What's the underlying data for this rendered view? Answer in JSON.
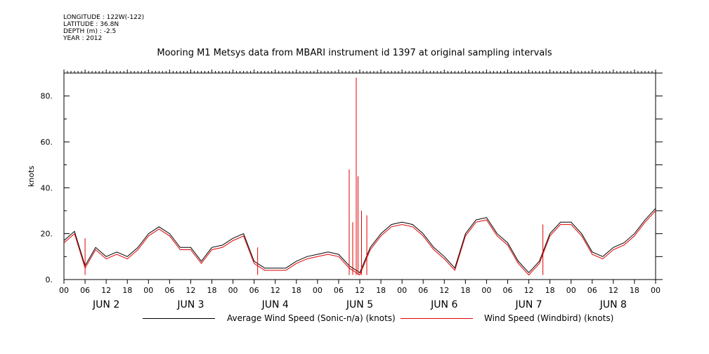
{
  "meta": {
    "longitude": "LONGITUDE : 122W(-122)",
    "latitude": "LATITUDE : 36.8N",
    "depth": "DEPTH (m) : -2.5",
    "year": "YEAR : 2012"
  },
  "colors": {
    "avg": "#000000",
    "windbird": "#e00000"
  },
  "chart_data": {
    "type": "line",
    "title": "Mooring M1 Metsys data from MBARI instrument id 1397 at original sampling intervals",
    "ylabel": "knots",
    "ylim": [
      0,
      90
    ],
    "yticks": [
      "0.",
      "20.",
      "40.",
      "60.",
      "80."
    ],
    "xlim_hours_labels": "JUN 2 00 to JUN 9 00",
    "x_hour_labels": [
      "00",
      "06",
      "12",
      "18",
      "00",
      "06",
      "12",
      "18",
      "00",
      "06",
      "12",
      "18",
      "00",
      "06",
      "12",
      "18",
      "00",
      "06",
      "12",
      "18",
      "00",
      "06",
      "12",
      "18",
      "00",
      "06",
      "12",
      "18",
      "00"
    ],
    "day_labels": [
      "JUN  2",
      "JUN  3",
      "JUN  4",
      "JUN  5",
      "JUN  6",
      "JUN  7",
      "JUN  8"
    ],
    "grid": false,
    "legend_position": "bottom",
    "series": [
      {
        "name": "Average Wind Speed (Sonic-n/a) (knots)",
        "x": [
          "Jun 2 00:00",
          "Jun 2 03:00",
          "Jun 2 06:00",
          "Jun 2 09:00",
          "Jun 2 12:00",
          "Jun 2 15:00",
          "Jun 2 18:00",
          "Jun 2 21:00",
          "Jun 3 00:00",
          "Jun 3 03:00",
          "Jun 3 06:00",
          "Jun 3 09:00",
          "Jun 3 12:00",
          "Jun 3 15:00",
          "Jun 3 18:00",
          "Jun 3 21:00",
          "Jun 4 00:00",
          "Jun 4 03:00",
          "Jun 4 06:00",
          "Jun 4 09:00",
          "Jun 4 12:00",
          "Jun 4 15:00",
          "Jun 4 18:00",
          "Jun 4 21:00",
          "Jun 5 00:00",
          "Jun 5 03:00",
          "Jun 5 06:00",
          "Jun 5 09:00",
          "Jun 5 12:00",
          "Jun 5 15:00",
          "Jun 5 18:00",
          "Jun 5 21:00",
          "Jun 6 00:00",
          "Jun 6 03:00",
          "Jun 6 06:00",
          "Jun 6 09:00",
          "Jun 6 12:00",
          "Jun 6 15:00",
          "Jun 6 18:00",
          "Jun 6 21:00",
          "Jun 7 00:00",
          "Jun 7 03:00",
          "Jun 7 06:00",
          "Jun 7 09:00",
          "Jun 7 12:00",
          "Jun 7 15:00",
          "Jun 7 18:00",
          "Jun 7 21:00",
          "Jun 8 00:00",
          "Jun 8 03:00",
          "Jun 8 06:00",
          "Jun 8 09:00",
          "Jun 8 12:00",
          "Jun 8 15:00",
          "Jun 8 18:00",
          "Jun 8 21:00",
          "Jun 9 00:00"
        ],
        "values": [
          17,
          21,
          6,
          14,
          10,
          12,
          10,
          14,
          20,
          23,
          20,
          14,
          14,
          8,
          14,
          15,
          18,
          20,
          8,
          5,
          5,
          5,
          8,
          10,
          11,
          12,
          11,
          6,
          3,
          14,
          20,
          24,
          25,
          24,
          20,
          14,
          10,
          5,
          20,
          26,
          27,
          20,
          16,
          8,
          3,
          8,
          20,
          25,
          25,
          20,
          12,
          10,
          14,
          16,
          20,
          26,
          31
        ]
      },
      {
        "name": "Wind Speed (Windbird) (knots)",
        "x": [
          "Jun 2 00:00",
          "Jun 2 03:00",
          "Jun 2 06:00",
          "Jun 2 09:00",
          "Jun 2 12:00",
          "Jun 2 15:00",
          "Jun 2 18:00",
          "Jun 2 21:00",
          "Jun 3 00:00",
          "Jun 3 03:00",
          "Jun 3 06:00",
          "Jun 3 09:00",
          "Jun 3 12:00",
          "Jun 3 15:00",
          "Jun 3 18:00",
          "Jun 3 21:00",
          "Jun 4 00:00",
          "Jun 4 03:00",
          "Jun 4 06:00",
          "Jun 4 09:00",
          "Jun 4 12:00",
          "Jun 4 15:00",
          "Jun 4 18:00",
          "Jun 4 21:00",
          "Jun 5 00:00",
          "Jun 5 03:00",
          "Jun 5 06:00",
          "Jun 5 09:00",
          "Jun 5 12:00",
          "Jun 5 15:00",
          "Jun 5 18:00",
          "Jun 5 21:00",
          "Jun 6 00:00",
          "Jun 6 03:00",
          "Jun 6 06:00",
          "Jun 6 09:00",
          "Jun 6 12:00",
          "Jun 6 15:00",
          "Jun 6 18:00",
          "Jun 6 21:00",
          "Jun 7 00:00",
          "Jun 7 03:00",
          "Jun 7 06:00",
          "Jun 7 09:00",
          "Jun 7 12:00",
          "Jun 7 15:00",
          "Jun 7 18:00",
          "Jun 7 21:00",
          "Jun 8 00:00",
          "Jun 8 03:00",
          "Jun 8 06:00",
          "Jun 8 09:00",
          "Jun 8 12:00",
          "Jun 8 15:00",
          "Jun 8 18:00",
          "Jun 8 21:00",
          "Jun 9 00:00"
        ],
        "values": [
          16,
          20,
          5,
          13,
          9,
          11,
          9,
          13,
          19,
          22,
          19,
          13,
          13,
          7,
          13,
          14,
          17,
          19,
          7,
          4,
          4,
          4,
          7,
          9,
          10,
          11,
          10,
          5,
          2,
          13,
          19,
          23,
          24,
          23,
          19,
          13,
          9,
          4,
          19,
          25,
          26,
          19,
          15,
          7,
          2,
          7,
          19,
          24,
          24,
          19,
          11,
          9,
          13,
          15,
          19,
          25,
          30
        ]
      }
    ],
    "spikes": [
      {
        "x": "Jun 5 09:00",
        "value": 48
      },
      {
        "x": "Jun 5 10:00",
        "value": 25
      },
      {
        "x": "Jun 5 11:00",
        "value": 88
      },
      {
        "x": "Jun 5 11:30",
        "value": 45
      },
      {
        "x": "Jun 5 12:30",
        "value": 30
      },
      {
        "x": "Jun 5 14:00",
        "value": 28
      },
      {
        "x": "Jun 7 16:00",
        "value": 24
      },
      {
        "x": "Jun 4 07:00",
        "value": 14
      },
      {
        "x": "Jun 2 06:00",
        "value": 18
      }
    ]
  },
  "legend": {
    "avg_label": "Average Wind Speed (Sonic-n/a) (knots)",
    "windbird_label": "Wind Speed (Windbird) (knots)"
  }
}
